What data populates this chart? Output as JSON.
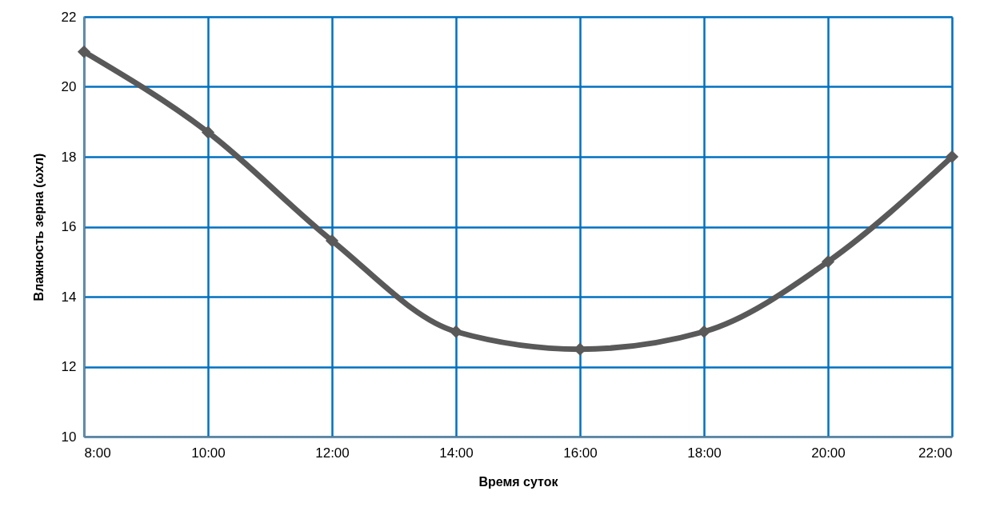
{
  "chart_data": {
    "type": "line",
    "xlabel": "Время суток",
    "ylabel": "Влажность зерна (ωхл)",
    "x": [
      8,
      10,
      12,
      14,
      16,
      18,
      20,
      22
    ],
    "series": [
      {
        "color": "#595959",
        "values": [
          21,
          18.7,
          15.6,
          13,
          12.5,
          13,
          15,
          18
        ]
      }
    ],
    "xlim": [
      8,
      22
    ],
    "xticks": [
      {
        "value": 8,
        "label": "8:00"
      },
      {
        "value": 10,
        "label": "10:00"
      },
      {
        "value": 12,
        "label": "12:00"
      },
      {
        "value": 14,
        "label": "14:00"
      },
      {
        "value": 16,
        "label": "16:00"
      },
      {
        "value": 18,
        "label": "18:00"
      },
      {
        "value": 20,
        "label": "20:00"
      },
      {
        "value": 22,
        "label": "22:00"
      }
    ],
    "ylim": [
      10,
      22
    ],
    "yticks": [
      10,
      12,
      14,
      16,
      18,
      20,
      22
    ],
    "grid": true,
    "marker": "diamond",
    "line_style": "solid"
  }
}
